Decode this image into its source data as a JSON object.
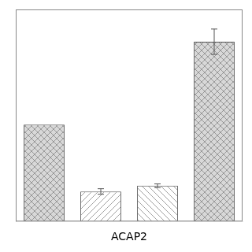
{
  "chart_data": {
    "type": "bar",
    "xlabel": "ACAP2",
    "categories": [
      null,
      null,
      null,
      null
    ],
    "values": [
      0.42,
      0.13,
      0.155,
      0.78
    ],
    "errors": [
      0,
      0.012,
      0.008,
      0.055
    ],
    "colors": [
      "#d8d8d8",
      "white",
      "white",
      "#d8d8d8"
    ],
    "ylim": [
      0,
      0.92
    ],
    "grid": false,
    "tick_labels": false
  }
}
